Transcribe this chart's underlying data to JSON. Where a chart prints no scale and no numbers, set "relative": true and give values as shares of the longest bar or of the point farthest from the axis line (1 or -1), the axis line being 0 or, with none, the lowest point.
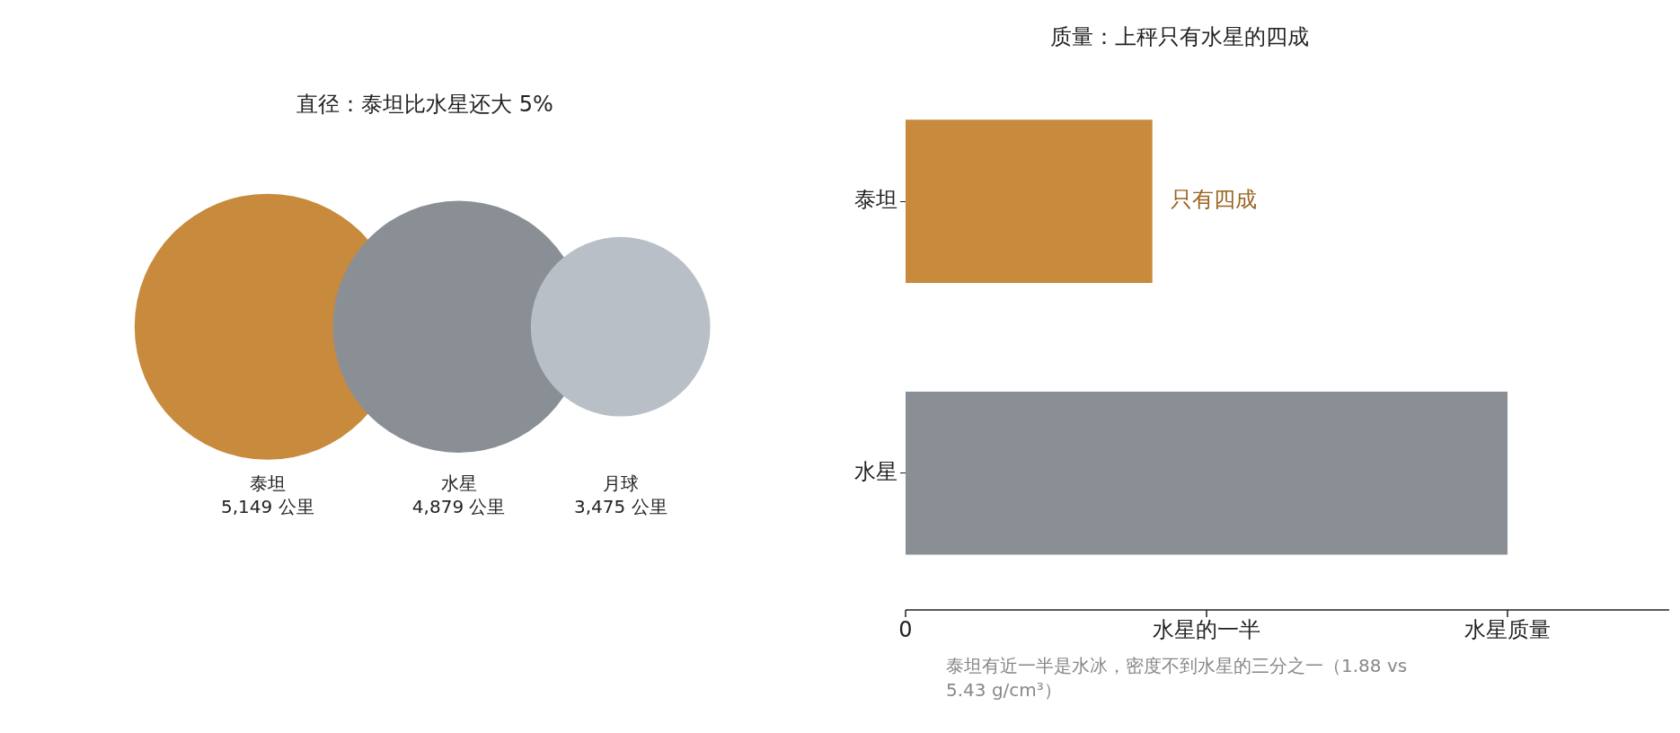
{
  "chart_data": [
    {
      "type": "other",
      "title": "直径：泰坦比水星还大 5%",
      "categories": [
        "泰坦",
        "水星",
        "月球"
      ],
      "values": [
        5149,
        4879,
        3475
      ],
      "value_labels": [
        "5,149 公里",
        "4,879 公里",
        "3,475 公里"
      ],
      "colors": [
        "#c88a3c",
        "#8a8f96",
        "#b9bfc6"
      ]
    },
    {
      "type": "bar",
      "orientation": "horizontal",
      "relative": true,
      "title": "质量：上秤只有水星的四成",
      "categories": [
        "泰坦",
        "水星"
      ],
      "values": [
        0.41,
        1
      ],
      "colors": [
        "#c88a3c",
        "#8a8f96"
      ],
      "legend": false,
      "annotations": [
        {
          "text": "只有四成",
          "x": 0.41,
          "y": "泰坦"
        },
        "0",
        "水星的一半",
        "水星质量",
        "泰坦有近一半是水冰，密度不到水星的三分之一（1.88 vs 5.43 g/cm³）"
      ]
    }
  ]
}
